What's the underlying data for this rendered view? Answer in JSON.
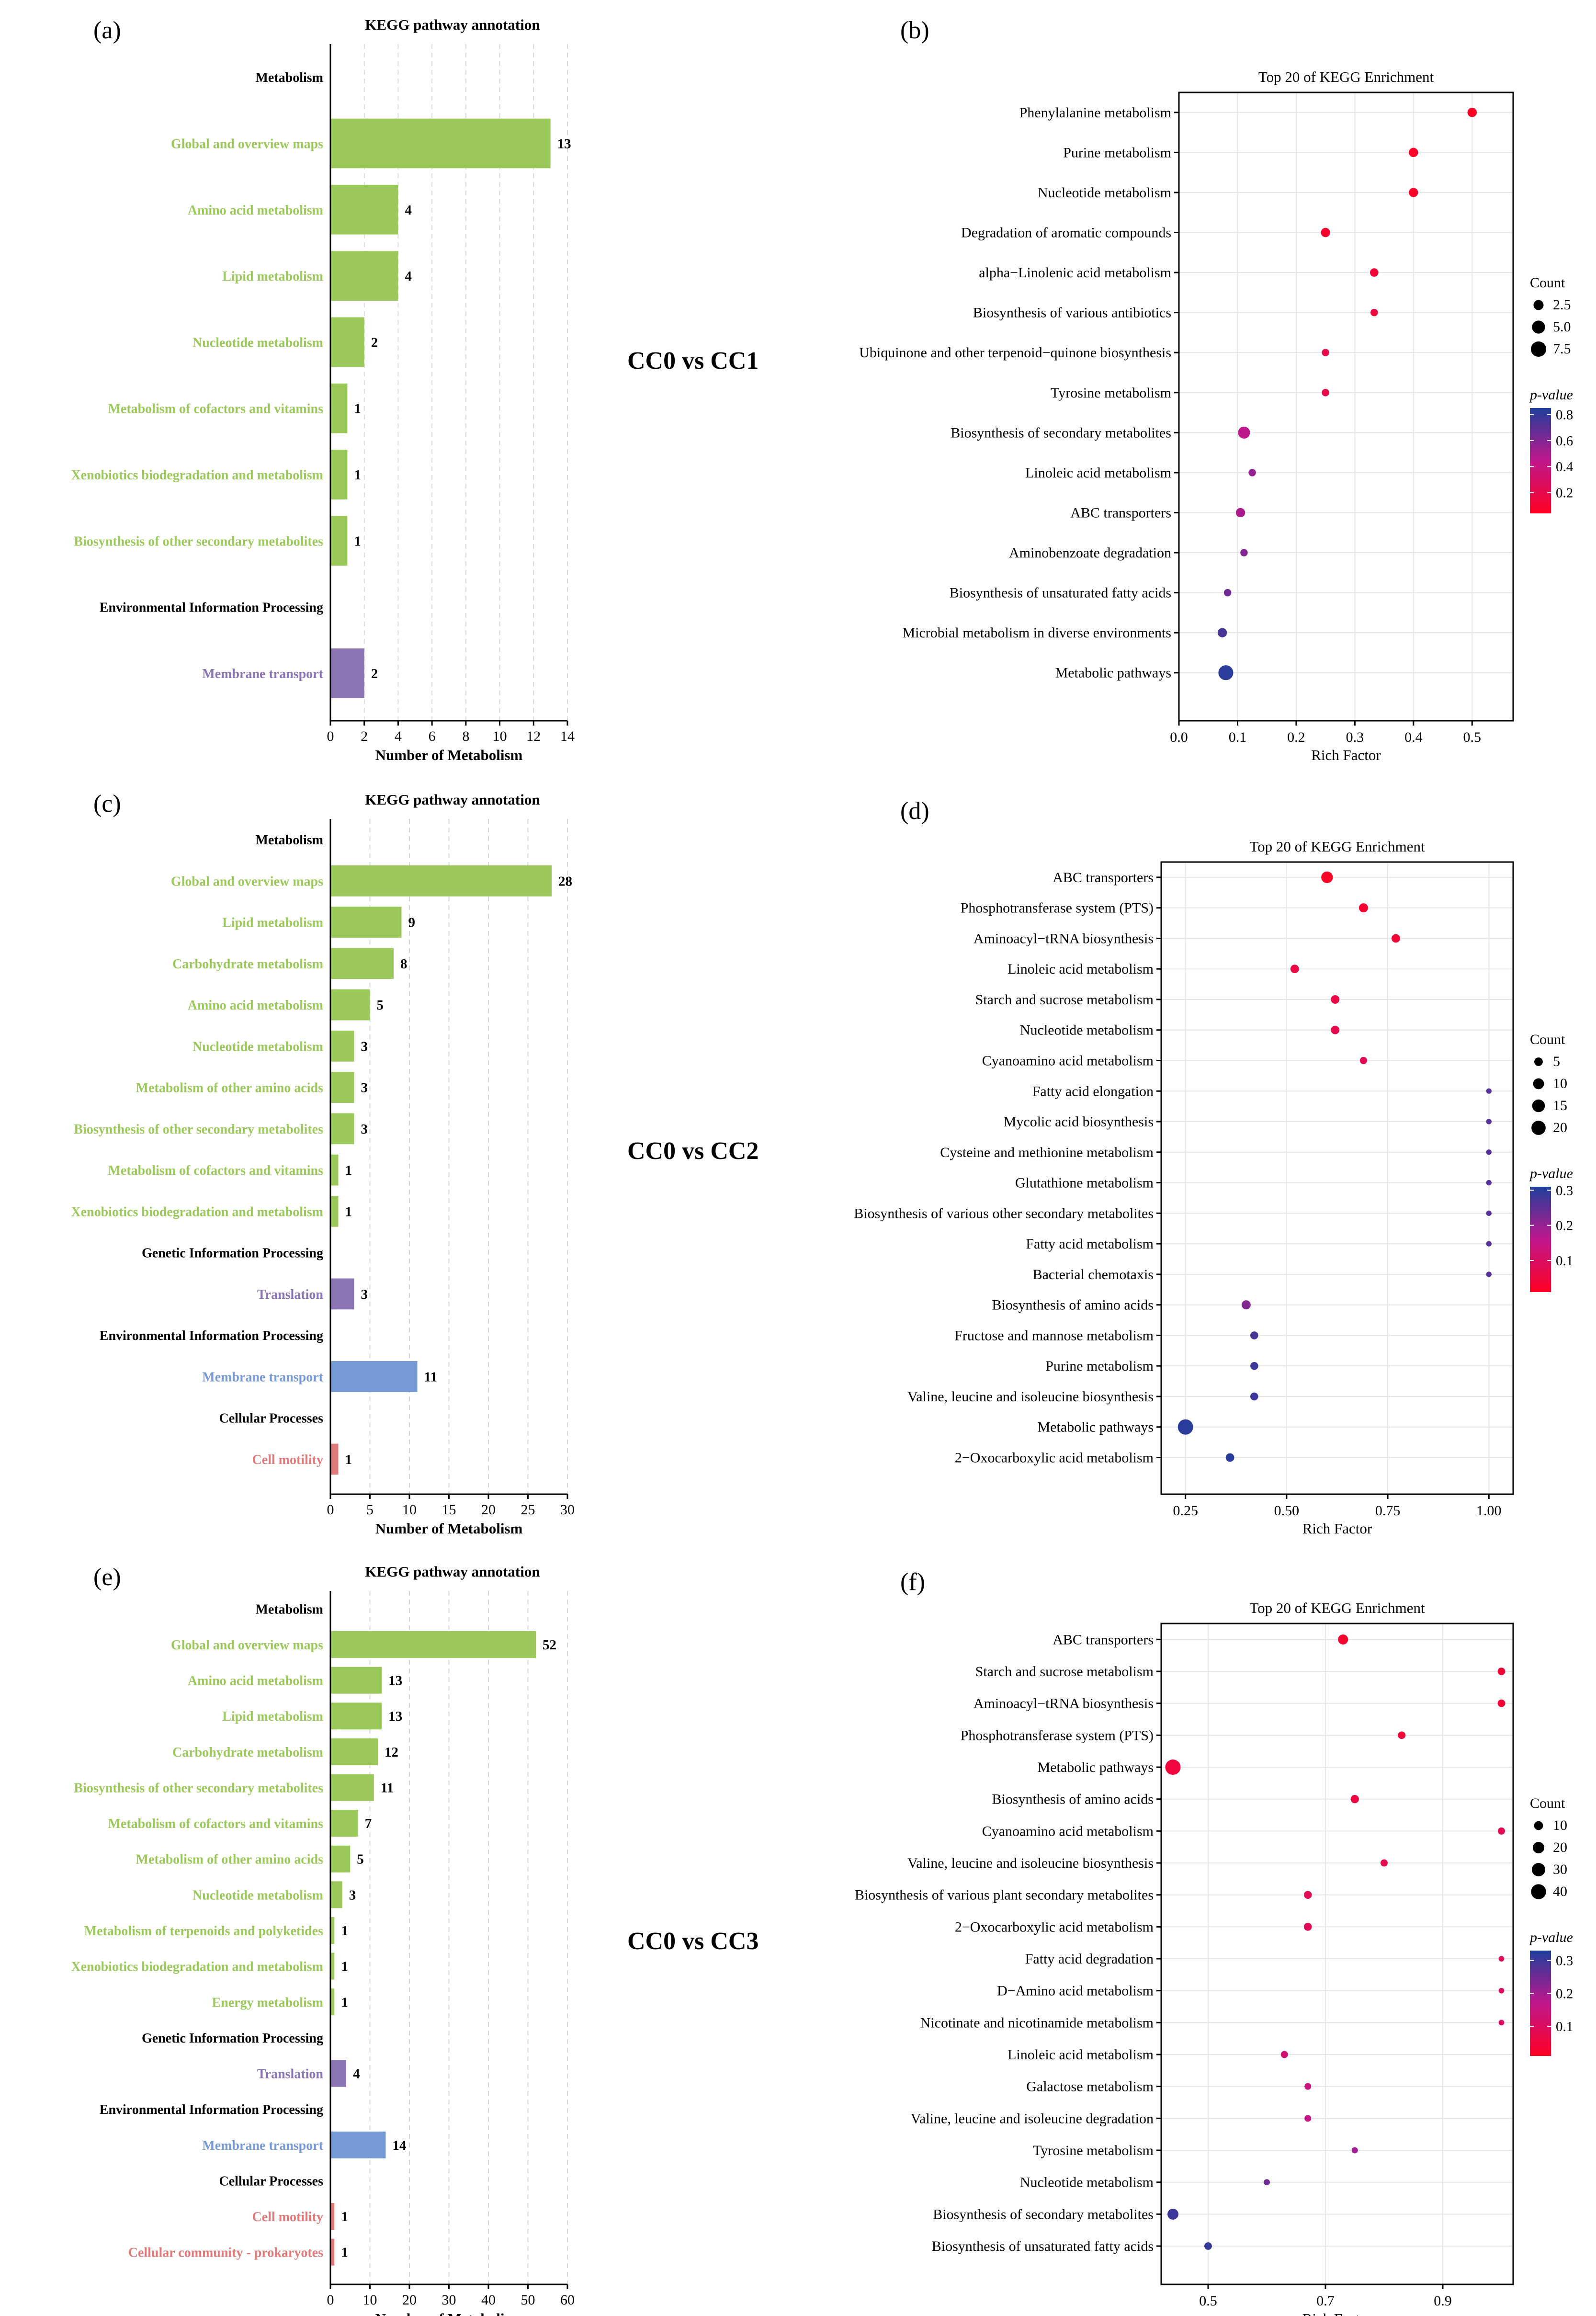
{
  "colors": {
    "metabolism": "#9bc85a",
    "genetic": "#8a74b4",
    "environmental_a": "#8a74b4",
    "environmental": "#779ad4",
    "cellular": "#e07a7a",
    "grid": "#d8d8d8",
    "pvalue_high": "#1f3f9c",
    "pvalue_mid": "#c0178c",
    "pvalue_low": "#ff0022"
  },
  "comparisons": [
    "CC0 vs CC1",
    "CC0 vs CC2",
    "CC0 vs CC3"
  ],
  "panel_labels": [
    "(a)",
    "(b)",
    "(c)",
    "(d)",
    "(e)",
    "(f)"
  ],
  "chart_data": [
    {
      "panel": "(a)",
      "type": "bar",
      "orientation": "horizontal",
      "title": "KEGG pathway annotation",
      "xlabel": "Number of Metabolism",
      "xlim": [
        0,
        14
      ],
      "xticks": [
        0,
        2,
        4,
        6,
        8,
        10,
        12,
        14
      ],
      "rows": [
        {
          "kind": "header",
          "label": "Metabolism"
        },
        {
          "kind": "bar",
          "label": "Global and overview maps",
          "value": 13,
          "group": "metabolism"
        },
        {
          "kind": "bar",
          "label": "Amino acid metabolism",
          "value": 4,
          "group": "metabolism"
        },
        {
          "kind": "bar",
          "label": "Lipid metabolism",
          "value": 4,
          "group": "metabolism"
        },
        {
          "kind": "bar",
          "label": "Nucleotide metabolism",
          "value": 2,
          "group": "metabolism"
        },
        {
          "kind": "bar",
          "label": "Metabolism of cofactors and vitamins",
          "value": 1,
          "group": "metabolism"
        },
        {
          "kind": "bar",
          "label": "Xenobiotics biodegradation and metabolism",
          "value": 1,
          "group": "metabolism"
        },
        {
          "kind": "bar",
          "label": "Biosynthesis of other secondary metabolites",
          "value": 1,
          "group": "metabolism"
        },
        {
          "kind": "header",
          "label": "Environmental Information Processing"
        },
        {
          "kind": "bar",
          "label": "Membrane transport",
          "value": 2,
          "group": "environmental_a"
        }
      ]
    },
    {
      "panel": "(b)",
      "type": "scatter",
      "title": "Top 20 of KEGG Enrichment",
      "xlabel": "Rich Factor",
      "xlim": [
        0,
        0.57
      ],
      "xticks": [
        0.0,
        0.1,
        0.2,
        0.3,
        0.4,
        0.5
      ],
      "xtick_labels": [
        "0.0",
        "0.1",
        "0.2",
        "0.3",
        "0.4",
        "0.5"
      ],
      "pvalue_range": [
        0.04,
        0.85
      ],
      "count_legend": {
        "title": "Count",
        "values": [
          2.5,
          5.0,
          7.5
        ],
        "labels": [
          "2.5",
          "5.0",
          "7.5"
        ]
      },
      "pvalue_legend": {
        "title": "p-value",
        "ticks": [
          0.8,
          0.6,
          0.4,
          0.2
        ],
        "labels": [
          "0.8",
          "0.6",
          "0.4",
          "0.2"
        ]
      },
      "points": [
        {
          "term": "Phenylalanine metabolism",
          "x": 0.5,
          "count": 2,
          "p": 0.05
        },
        {
          "term": "Purine metabolism",
          "x": 0.4,
          "count": 2,
          "p": 0.06
        },
        {
          "term": "Nucleotide metabolism",
          "x": 0.4,
          "count": 2,
          "p": 0.07
        },
        {
          "term": "Degradation of aromatic compounds",
          "x": 0.25,
          "count": 2,
          "p": 0.09
        },
        {
          "term": "alpha−Linolenic acid metabolism",
          "x": 0.333,
          "count": 1.5,
          "p": 0.12
        },
        {
          "term": "Biosynthesis of various antibiotics",
          "x": 0.333,
          "count": 1,
          "p": 0.15
        },
        {
          "term": "Ubiquinone and other terpenoid−quinone biosynthesis",
          "x": 0.25,
          "count": 1,
          "p": 0.18
        },
        {
          "term": "Tyrosine metabolism",
          "x": 0.25,
          "count": 1,
          "p": 0.18
        },
        {
          "term": "Biosynthesis of secondary metabolites",
          "x": 0.111,
          "count": 4,
          "p": 0.45
        },
        {
          "term": "Linoleic acid metabolism",
          "x": 0.125,
          "count": 1,
          "p": 0.55
        },
        {
          "term": "ABC transporters",
          "x": 0.105,
          "count": 2,
          "p": 0.5
        },
        {
          "term": "Aminobenzoate degradation",
          "x": 0.111,
          "count": 1,
          "p": 0.6
        },
        {
          "term": "Biosynthesis of unsaturated fatty acids",
          "x": 0.083,
          "count": 1,
          "p": 0.65
        },
        {
          "term": "Microbial metabolism in diverse environments",
          "x": 0.074,
          "count": 2,
          "p": 0.75
        },
        {
          "term": "Metabolic pathways",
          "x": 0.08,
          "count": 7,
          "p": 0.82
        }
      ]
    },
    {
      "panel": "(c)",
      "type": "bar",
      "orientation": "horizontal",
      "title": "KEGG pathway annotation",
      "xlabel": "Number of Metabolism",
      "xlim": [
        0,
        30
      ],
      "xticks": [
        0,
        5,
        10,
        15,
        20,
        25,
        30
      ],
      "rows": [
        {
          "kind": "header",
          "label": "Metabolism"
        },
        {
          "kind": "bar",
          "label": "Global and overview maps",
          "value": 28,
          "group": "metabolism"
        },
        {
          "kind": "bar",
          "label": "Lipid metabolism",
          "value": 9,
          "group": "metabolism"
        },
        {
          "kind": "bar",
          "label": "Carbohydrate metabolism",
          "value": 8,
          "group": "metabolism"
        },
        {
          "kind": "bar",
          "label": "Amino acid metabolism",
          "value": 5,
          "group": "metabolism"
        },
        {
          "kind": "bar",
          "label": "Nucleotide metabolism",
          "value": 3,
          "group": "metabolism"
        },
        {
          "kind": "bar",
          "label": "Metabolism of other amino acids",
          "value": 3,
          "group": "metabolism"
        },
        {
          "kind": "bar",
          "label": "Biosynthesis of other secondary metabolites",
          "value": 3,
          "group": "metabolism"
        },
        {
          "kind": "bar",
          "label": "Metabolism of cofactors and vitamins",
          "value": 1,
          "group": "metabolism"
        },
        {
          "kind": "bar",
          "label": "Xenobiotics biodegradation and metabolism",
          "value": 1,
          "group": "metabolism"
        },
        {
          "kind": "header",
          "label": "Genetic Information Processing"
        },
        {
          "kind": "bar",
          "label": "Translation",
          "value": 3,
          "group": "genetic"
        },
        {
          "kind": "header",
          "label": "Environmental Information Processing"
        },
        {
          "kind": "bar",
          "label": "Membrane transport",
          "value": 11,
          "group": "environmental"
        },
        {
          "kind": "header",
          "label": "Cellular Processes"
        },
        {
          "kind": "bar",
          "label": "Cell motility",
          "value": 1,
          "group": "cellular"
        }
      ]
    },
    {
      "panel": "(d)",
      "type": "scatter",
      "title": "Top 20 of KEGG Enrichment",
      "xlabel": "Rich Factor",
      "xlim": [
        0.19,
        1.06
      ],
      "xticks": [
        0.25,
        0.5,
        0.75,
        1.0
      ],
      "xtick_labels": [
        "0.25",
        "0.50",
        "0.75",
        "1.00"
      ],
      "pvalue_range": [
        0.01,
        0.31
      ],
      "count_legend": {
        "title": "Count",
        "values": [
          5,
          10,
          15,
          20
        ],
        "labels": [
          "5",
          "10",
          "15",
          "20"
        ]
      },
      "pvalue_legend": {
        "title": "p-value",
        "ticks": [
          0.3,
          0.2,
          0.1
        ],
        "labels": [
          "0.3",
          "0.2",
          "0.1"
        ]
      },
      "points": [
        {
          "term": "ABC transporters",
          "x": 0.6,
          "count": 12,
          "p": 0.02
        },
        {
          "term": "Phosphotransferase system (PTS)",
          "x": 0.69,
          "count": 6,
          "p": 0.03
        },
        {
          "term": "Aminoacyl−tRNA biosynthesis",
          "x": 0.77,
          "count": 5,
          "p": 0.04
        },
        {
          "term": "Linoleic acid metabolism",
          "x": 0.52,
          "count": 5,
          "p": 0.06
        },
        {
          "term": "Starch and sucrose metabolism",
          "x": 0.62,
          "count": 5,
          "p": 0.06
        },
        {
          "term": "Nucleotide metabolism",
          "x": 0.62,
          "count": 5,
          "p": 0.07
        },
        {
          "term": "Cyanoamino acid metabolism",
          "x": 0.69,
          "count": 3,
          "p": 0.08
        },
        {
          "term": "Fatty acid elongation",
          "x": 1.0,
          "count": 1,
          "p": 0.26
        },
        {
          "term": "Mycolic acid biosynthesis",
          "x": 1.0,
          "count": 1,
          "p": 0.26
        },
        {
          "term": "Cysteine and methionine metabolism",
          "x": 1.0,
          "count": 1,
          "p": 0.26
        },
        {
          "term": "Glutathione metabolism",
          "x": 1.0,
          "count": 1,
          "p": 0.26
        },
        {
          "term": "Biosynthesis of various other secondary metabolites",
          "x": 1.0,
          "count": 1,
          "p": 0.26
        },
        {
          "term": "Fatty acid metabolism",
          "x": 1.0,
          "count": 1,
          "p": 0.26
        },
        {
          "term": "Bacterial chemotaxis",
          "x": 1.0,
          "count": 1,
          "p": 0.26
        },
        {
          "term": "Biosynthesis of amino acids",
          "x": 0.4,
          "count": 6,
          "p": 0.22
        },
        {
          "term": "Fructose and mannose metabolism",
          "x": 0.42,
          "count": 4,
          "p": 0.27
        },
        {
          "term": "Purine metabolism",
          "x": 0.42,
          "count": 4,
          "p": 0.28
        },
        {
          "term": "Valine, leucine and isoleucine biosynthesis",
          "x": 0.42,
          "count": 4,
          "p": 0.28
        },
        {
          "term": "Metabolic pathways",
          "x": 0.25,
          "count": 24,
          "p": 0.3
        },
        {
          "term": "2−Oxocarboxylic acid metabolism",
          "x": 0.36,
          "count": 5,
          "p": 0.3
        }
      ]
    },
    {
      "panel": "(e)",
      "type": "bar",
      "orientation": "horizontal",
      "title": "KEGG pathway annotation",
      "xlabel": "Number of Metabolism",
      "xlim": [
        0,
        60
      ],
      "xticks": [
        0,
        10,
        20,
        30,
        40,
        50,
        60
      ],
      "rows": [
        {
          "kind": "header",
          "label": "Metabolism"
        },
        {
          "kind": "bar",
          "label": "Global and overview maps",
          "value": 52,
          "group": "metabolism"
        },
        {
          "kind": "bar",
          "label": "Amino acid metabolism",
          "value": 13,
          "group": "metabolism"
        },
        {
          "kind": "bar",
          "label": "Lipid metabolism",
          "value": 13,
          "group": "metabolism"
        },
        {
          "kind": "bar",
          "label": "Carbohydrate metabolism",
          "value": 12,
          "group": "metabolism"
        },
        {
          "kind": "bar",
          "label": "Biosynthesis of other secondary metabolites",
          "value": 11,
          "group": "metabolism"
        },
        {
          "kind": "bar",
          "label": "Metabolism of cofactors and vitamins",
          "value": 7,
          "group": "metabolism"
        },
        {
          "kind": "bar",
          "label": "Metabolism of other amino acids",
          "value": 5,
          "group": "metabolism"
        },
        {
          "kind": "bar",
          "label": "Nucleotide metabolism",
          "value": 3,
          "group": "metabolism"
        },
        {
          "kind": "bar",
          "label": "Metabolism of terpenoids and polyketides",
          "value": 1,
          "group": "metabolism"
        },
        {
          "kind": "bar",
          "label": "Xenobiotics biodegradation and metabolism",
          "value": 1,
          "group": "metabolism"
        },
        {
          "kind": "bar",
          "label": "Energy metabolism",
          "value": 1,
          "group": "metabolism"
        },
        {
          "kind": "header",
          "label": "Genetic Information Processing"
        },
        {
          "kind": "bar",
          "label": "Translation",
          "value": 4,
          "group": "genetic"
        },
        {
          "kind": "header",
          "label": "Environmental Information Processing"
        },
        {
          "kind": "bar",
          "label": "Membrane transport",
          "value": 14,
          "group": "environmental"
        },
        {
          "kind": "header",
          "label": "Cellular Processes"
        },
        {
          "kind": "bar",
          "label": "Cell motility",
          "value": 1,
          "group": "cellular"
        },
        {
          "kind": "bar",
          "label": "Cellular community - prokaryotes",
          "value": 1,
          "group": "cellular"
        }
      ]
    },
    {
      "panel": "(f)",
      "type": "scatter",
      "title": "Top 20 of KEGG Enrichment",
      "xlabel": "Rich Factor",
      "xlim": [
        0.42,
        1.02
      ],
      "xticks": [
        0.5,
        0.7,
        0.9
      ],
      "xtick_labels": [
        "0.5",
        "0.7",
        "0.9"
      ],
      "pvalue_range": [
        0.01,
        0.33
      ],
      "count_legend": {
        "title": "Count",
        "values": [
          10,
          20,
          30,
          40
        ],
        "labels": [
          "10",
          "20",
          "30",
          "40"
        ]
      },
      "pvalue_legend": {
        "title": "p-value",
        "ticks": [
          0.3,
          0.2,
          0.1
        ],
        "labels": [
          "0.3",
          "0.2",
          "0.1"
        ]
      },
      "points": [
        {
          "term": "ABC transporters",
          "x": 0.73,
          "count": 14,
          "p": 0.03
        },
        {
          "term": "Starch and sucrose metabolism",
          "x": 1.0,
          "count": 6,
          "p": 0.04
        },
        {
          "term": "Aminoacyl−tRNA biosynthesis",
          "x": 1.0,
          "count": 6,
          "p": 0.04
        },
        {
          "term": "Phosphotransferase system (PTS)",
          "x": 0.83,
          "count": 6,
          "p": 0.05
        },
        {
          "term": "Metabolic pathways",
          "x": 0.44,
          "count": 42,
          "p": 0.05
        },
        {
          "term": "Biosynthesis of amino acids",
          "x": 0.75,
          "count": 8,
          "p": 0.06
        },
        {
          "term": "Cyanoamino acid metabolism",
          "x": 1.0,
          "count": 5,
          "p": 0.08
        },
        {
          "term": "Valine, leucine and isoleucine biosynthesis",
          "x": 0.8,
          "count": 5,
          "p": 0.08
        },
        {
          "term": "Biosynthesis of various plant secondary metabolites",
          "x": 0.67,
          "count": 7,
          "p": 0.09
        },
        {
          "term": "2−Oxocarboxylic acid metabolism",
          "x": 0.67,
          "count": 7,
          "p": 0.09
        },
        {
          "term": "Fatty acid degradation",
          "x": 1.0,
          "count": 2,
          "p": 0.1
        },
        {
          "term": "D−Amino acid metabolism",
          "x": 1.0,
          "count": 2,
          "p": 0.1
        },
        {
          "term": "Nicotinate and nicotinamide metabolism",
          "x": 1.0,
          "count": 2,
          "p": 0.1
        },
        {
          "term": "Linoleic acid metabolism",
          "x": 0.63,
          "count": 5,
          "p": 0.13
        },
        {
          "term": "Galactose metabolism",
          "x": 0.67,
          "count": 4,
          "p": 0.15
        },
        {
          "term": "Valine, leucine and isoleucine degradation",
          "x": 0.67,
          "count": 4,
          "p": 0.16
        },
        {
          "term": "Tyrosine metabolism",
          "x": 0.75,
          "count": 3,
          "p": 0.2
        },
        {
          "term": "Nucleotide metabolism",
          "x": 0.6,
          "count": 3,
          "p": 0.25
        },
        {
          "term": "Biosynthesis of secondary metabolites",
          "x": 0.44,
          "count": 18,
          "p": 0.3
        },
        {
          "term": "Biosynthesis of unsaturated fatty acids",
          "x": 0.5,
          "count": 6,
          "p": 0.31
        }
      ]
    }
  ]
}
